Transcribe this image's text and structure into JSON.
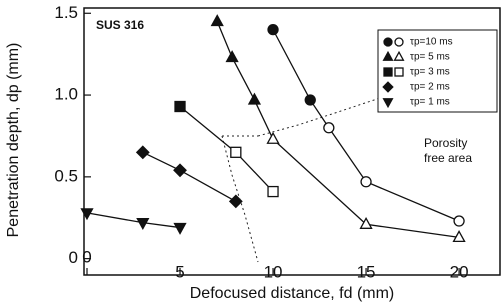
{
  "chart_data": {
    "type": "line",
    "xlabel": "Defocused distance, fd (mm)",
    "ylabel": "Penetration depth, dp (mm)",
    "annotations": [
      "SUS 316",
      "Porosity",
      "free area"
    ],
    "xlim": [
      0,
      22.2
    ],
    "ylim": [
      -0.1,
      1.52
    ],
    "xticks": [
      0,
      5,
      10,
      15,
      20
    ],
    "yticks": [
      0,
      0.5,
      {
        "value": 1,
        "label": "1.0"
      },
      1.5
    ],
    "series": [
      {
        "name": "τp=10 ms",
        "color": "#111111",
        "marker": "circle",
        "x": [
          10,
          12,
          13,
          15,
          20
        ],
        "values": [
          1.4,
          0.97,
          0.8,
          0.47,
          0.23
        ],
        "filled": [
          true,
          true,
          false,
          false,
          false
        ]
      },
      {
        "name": "τp= 5 ms",
        "color": "#111111",
        "marker": "triangle",
        "x": [
          7,
          7.8,
          9,
          10,
          15,
          20
        ],
        "values": [
          1.45,
          1.23,
          0.97,
          0.73,
          0.21,
          0.13
        ],
        "filled": [
          true,
          true,
          true,
          false,
          false,
          false
        ]
      },
      {
        "name": "τp= 3 ms",
        "color": "#111111",
        "marker": "square",
        "x": [
          5,
          8,
          10
        ],
        "values": [
          0.93,
          0.65,
          0.41
        ],
        "filled": [
          true,
          false,
          false
        ]
      },
      {
        "name": "τp= 2 ms",
        "color": "#111111",
        "marker": "diamond",
        "x": [
          3,
          5,
          8
        ],
        "values": [
          0.65,
          0.54,
          0.35
        ],
        "filled": [
          true,
          true,
          true
        ]
      },
      {
        "name": "τp= 1 ms",
        "color": "#111111",
        "marker": "triangle-down",
        "x": [
          0,
          3,
          5
        ],
        "values": [
          0.28,
          0.22,
          0.19
        ],
        "filled": [
          true,
          true,
          true
        ]
      }
    ]
  }
}
